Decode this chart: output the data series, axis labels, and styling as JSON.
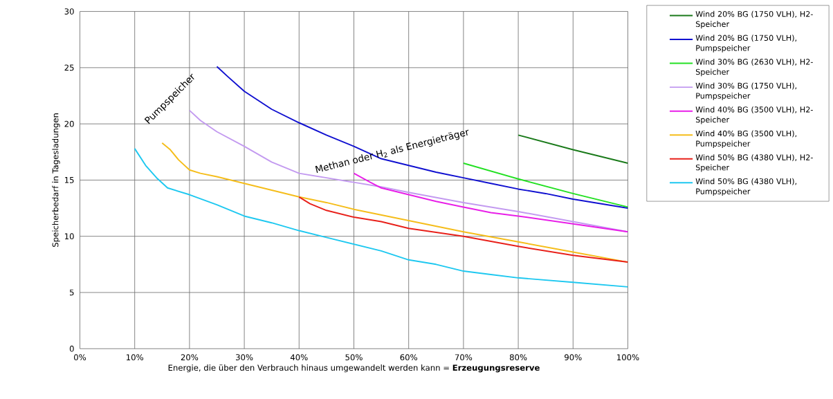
{
  "chart_data": {
    "type": "line",
    "xlabel": "Energie, die über den Verbrauch hinaus umgewandelt werden kann = **Erzeugungsreserve**",
    "ylabel": "Speicherbedarf in Tagesladungen",
    "xlim": [
      0,
      100
    ],
    "ylim": [
      0,
      30
    ],
    "xticks": [
      {
        "value": 0,
        "label": "0%"
      },
      {
        "value": 10,
        "label": "10%"
      },
      {
        "value": 20,
        "label": "20%"
      },
      {
        "value": 30,
        "label": "30%"
      },
      {
        "value": 40,
        "label": "40%"
      },
      {
        "value": 50,
        "label": "50%"
      },
      {
        "value": 60,
        "label": "60%"
      },
      {
        "value": 70,
        "label": "70%"
      },
      {
        "value": 80,
        "label": "80%"
      },
      {
        "value": 90,
        "label": "90%"
      },
      {
        "value": 100,
        "label": "100%"
      }
    ],
    "yticks": [
      0,
      5,
      10,
      15,
      20,
      25,
      30
    ],
    "grid": true,
    "legend": "right",
    "marker": "none",
    "line_style": "solid",
    "annotations": [
      "Pumpspeicher",
      "Methan oder H$_{2}$  als Energieträger"
    ],
    "series": [
      {
        "name": "Wind 20% BG (1750 VLH), H2-Speicher",
        "color": "#1a7a1a",
        "x": [
          80,
          90,
          100
        ],
        "values": [
          19.0,
          17.7,
          16.5
        ]
      },
      {
        "name": "Wind 20% BG (1750 VLH), Pumpspeicher",
        "color": "#1010d0",
        "x": [
          25,
          27,
          30,
          35,
          40,
          45,
          50,
          55,
          60,
          65,
          70,
          75,
          80,
          85,
          90,
          95,
          100
        ],
        "values": [
          25.1,
          24.2,
          22.9,
          21.3,
          20.1,
          19.0,
          18.0,
          16.9,
          16.3,
          15.7,
          15.2,
          14.7,
          14.2,
          13.8,
          13.3,
          12.9,
          12.5
        ]
      },
      {
        "name": "Wind 30% BG (2630 VLH), H2-Speicher",
        "color": "#22e022",
        "x": [
          70,
          80,
          90,
          100
        ],
        "values": [
          16.5,
          15.1,
          13.8,
          12.6
        ]
      },
      {
        "name": "Wind 30% BG (1750 VLH), Pumpspeicher",
        "color": "#c39af0",
        "x": [
          20,
          22,
          25,
          30,
          35,
          40,
          45,
          50,
          55,
          60,
          70,
          80,
          90,
          100
        ],
        "values": [
          21.2,
          20.3,
          19.3,
          18.0,
          16.6,
          15.6,
          15.2,
          14.8,
          14.4,
          13.9,
          13.0,
          12.2,
          11.3,
          10.4
        ]
      },
      {
        "name": "Wind 40% BG (3500 VLH), H2-Speicher",
        "color": "#e81ee8",
        "x": [
          50,
          53,
          55,
          60,
          65,
          70,
          75,
          80,
          90,
          100
        ],
        "values": [
          15.6,
          14.8,
          14.3,
          13.7,
          13.1,
          12.6,
          12.1,
          11.8,
          11.1,
          10.4
        ]
      },
      {
        "name": "Wind 40% BG (3500 VLH), Pumpspeicher",
        "color": "#f5bd1a",
        "x": [
          15,
          16.5,
          18,
          20,
          22,
          25,
          30,
          35,
          40,
          45,
          50,
          60,
          70,
          80,
          90,
          100
        ],
        "values": [
          18.3,
          17.7,
          16.8,
          15.9,
          15.6,
          15.3,
          14.7,
          14.1,
          13.5,
          13.0,
          12.4,
          11.4,
          10.4,
          9.5,
          8.6,
          7.7
        ]
      },
      {
        "name": "Wind 50% BG (4380 VLH), H2-Speicher",
        "color": "#e8201a",
        "x": [
          40,
          42,
          45,
          50,
          55,
          60,
          70,
          80,
          90,
          100
        ],
        "values": [
          13.5,
          12.9,
          12.3,
          11.7,
          11.3,
          10.7,
          10.0,
          9.1,
          8.3,
          7.7
        ]
      },
      {
        "name": "Wind 50% BG (4380 VLH), Pumpspeicher",
        "color": "#1ec8f0",
        "x": [
          10,
          12,
          14,
          16,
          20,
          25,
          30,
          35,
          40,
          45,
          50,
          55,
          60,
          65,
          70,
          75,
          80,
          90,
          100
        ],
        "values": [
          17.8,
          16.3,
          15.2,
          14.3,
          13.7,
          12.8,
          11.8,
          11.2,
          10.5,
          9.9,
          9.3,
          8.7,
          7.9,
          7.5,
          6.9,
          6.6,
          6.3,
          5.9,
          5.5
        ]
      }
    ]
  }
}
